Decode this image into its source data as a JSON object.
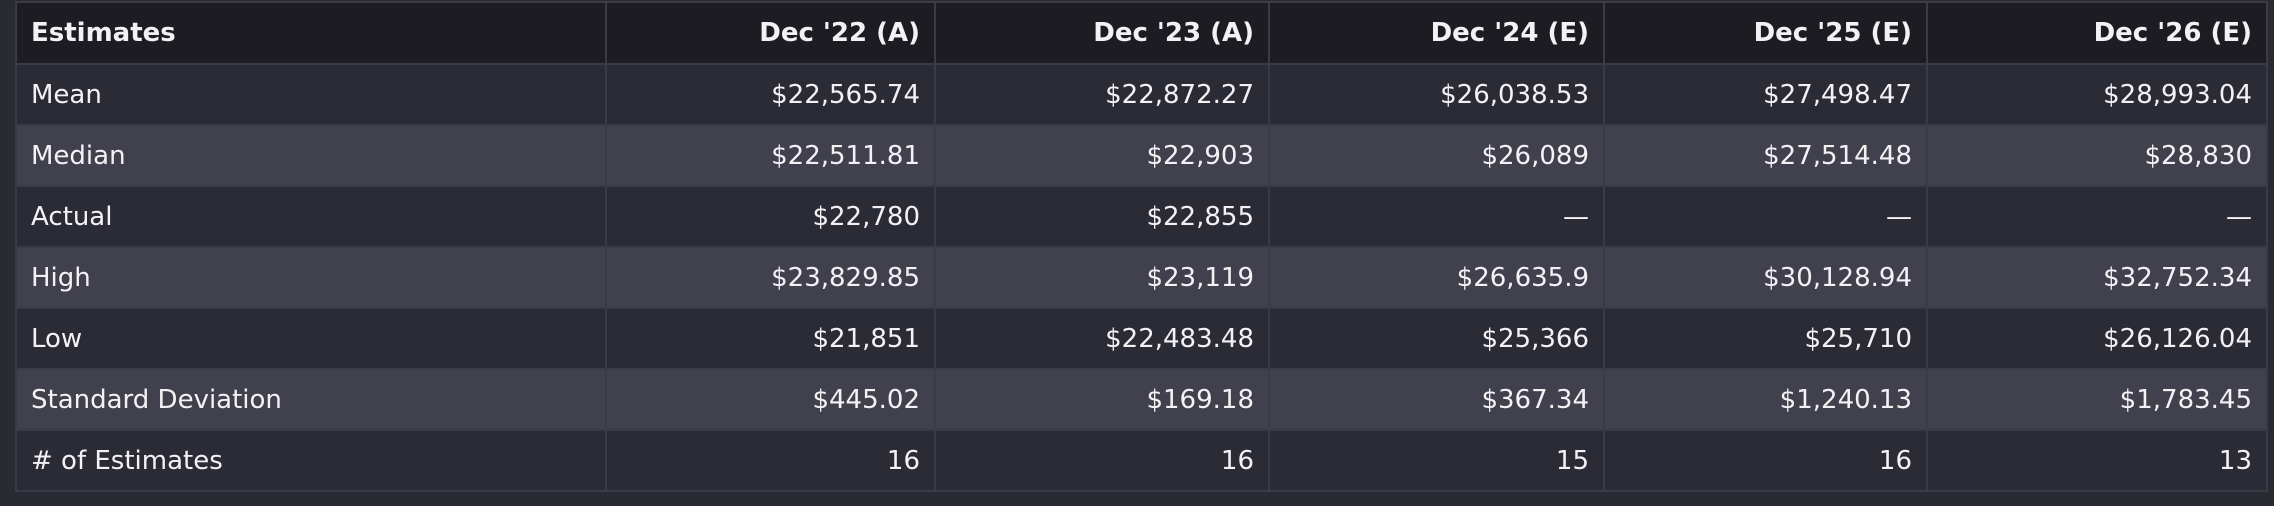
{
  "table": {
    "header": [
      "Estimates",
      "Dec '22 (A)",
      "Dec '23 (A)",
      "Dec '24 (E)",
      "Dec '25 (E)",
      "Dec '26 (E)"
    ],
    "rows": [
      [
        "Mean",
        "$22,565.74",
        "$22,872.27",
        "$26,038.53",
        "$27,498.47",
        "$28,993.04"
      ],
      [
        "Median",
        "$22,511.81",
        "$22,903",
        "$26,089",
        "$27,514.48",
        "$28,830"
      ],
      [
        "Actual",
        "$22,780",
        "$22,855",
        "—",
        "—",
        "—"
      ],
      [
        "High",
        "$23,829.85",
        "$23,119",
        "$26,635.9",
        "$30,128.94",
        "$32,752.34"
      ],
      [
        "Low",
        "$21,851",
        "$22,483.48",
        "$25,366",
        "$25,710",
        "$26,126.04"
      ],
      [
        "Standard Deviation",
        "$445.02",
        "$169.18",
        "$367.34",
        "$1,240.13",
        "$1,783.45"
      ],
      [
        "# of Estimates",
        "16",
        "16",
        "15",
        "16",
        "13"
      ]
    ]
  }
}
